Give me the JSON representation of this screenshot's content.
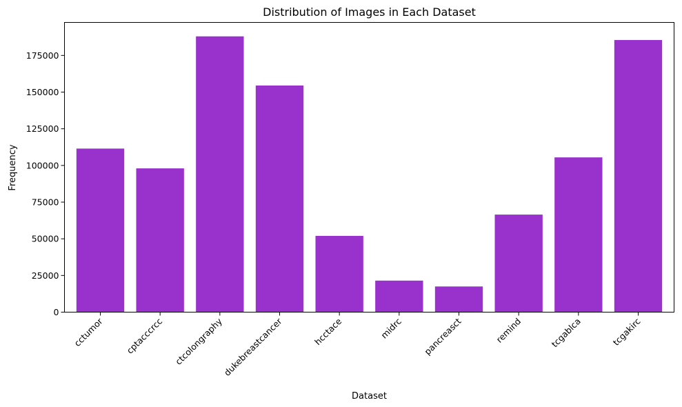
{
  "chart_data": {
    "type": "bar",
    "title": "Distribution of Images in Each Dataset",
    "xlabel": "Dataset",
    "ylabel": "Frequency",
    "categories": [
      "cctumor",
      "cptacccrcc",
      "ctcolongraphy",
      "dukebreastcancer",
      "hcctace",
      "midrc",
      "pancreasct",
      "remind",
      "tcgablca",
      "tcgakirc"
    ],
    "values": [
      111500,
      98000,
      188000,
      154500,
      52000,
      21500,
      17500,
      66500,
      105500,
      185500
    ],
    "ylim": [
      0,
      197500
    ],
    "yticks": [
      0,
      25000,
      50000,
      75000,
      100000,
      125000,
      150000,
      175000
    ],
    "grid": false,
    "bar_color": "#9932cc"
  }
}
